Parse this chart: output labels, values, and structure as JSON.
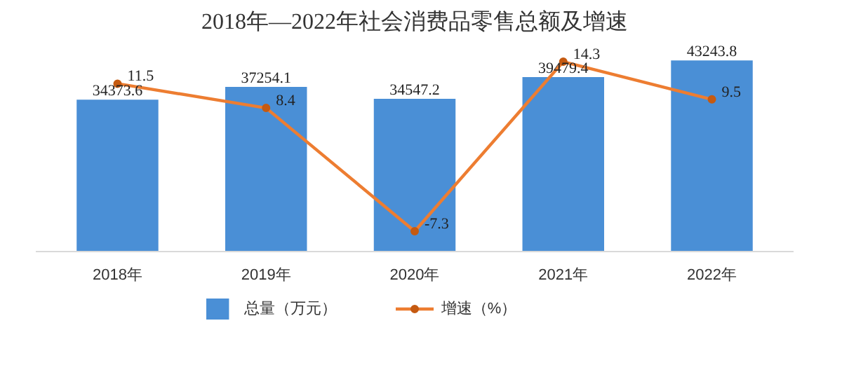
{
  "chart_data": {
    "type": "bar",
    "title": "2018年—2022年社会消费品零售总额及增速",
    "categories": [
      "2018年",
      "2019年",
      "2020年",
      "2021年",
      "2022年"
    ],
    "series": [
      {
        "name": "总量（万元）",
        "color": "#4a8fd6",
        "values": [
          34373.6,
          37254.1,
          34547.2,
          39479.4,
          43243.8
        ]
      },
      {
        "name": "增速（%）",
        "type": "line",
        "axis": "y2",
        "color": "#ed7d31",
        "values": [
          11.5,
          8.4,
          -7.3,
          14.3,
          9.5
        ]
      }
    ],
    "tick_labels": "x",
    "data_labels": true,
    "legend": "bottom",
    "marker": "circle",
    "line_style": "solid",
    "grid": false
  }
}
